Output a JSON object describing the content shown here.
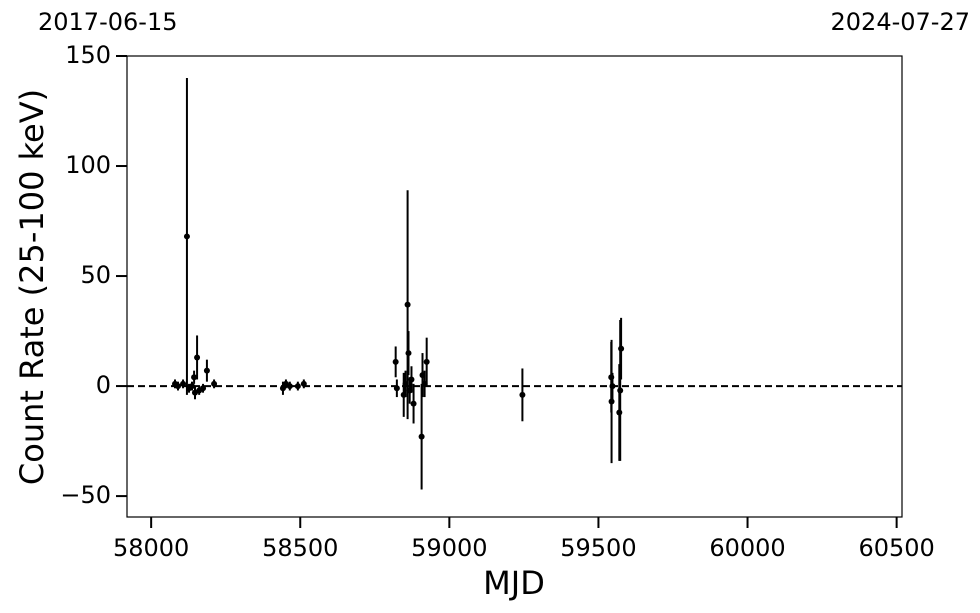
{
  "chart_data": {
    "type": "errorbar",
    "xlabel": "MJD",
    "ylabel": "Count Rate (25-100 keV)",
    "top_labels": [
      "2017-06-15",
      "2024-07-27"
    ],
    "xlim": [
      57919,
      60518
    ],
    "ylim": [
      -59.5,
      150
    ],
    "xticks": [
      58000,
      58500,
      59000,
      59500,
      60000,
      60500
    ],
    "yticks": [
      {
        "value": -50,
        "label": "−50"
      },
      0,
      50,
      100,
      150
    ],
    "hline": 0,
    "color": "#000000",
    "series": [
      {
        "name": "data",
        "color": "#000000",
        "x": [
          58080,
          58090,
          58107,
          58120,
          58127,
          58137,
          58144,
          58147,
          58154,
          58161,
          58174,
          58187,
          58211,
          58442,
          58452,
          58465,
          58492,
          58512,
          58820,
          58824,
          58847,
          58853,
          58860,
          58863,
          58867,
          58873,
          58880,
          58907,
          58910,
          58917,
          58924,
          59245,
          59543,
          59544,
          59547,
          59570,
          59573,
          59576
        ],
        "values": [
          1,
          0,
          1,
          68,
          -1,
          0,
          4,
          -3,
          13,
          -2,
          -1,
          7,
          1,
          -1,
          1,
          0,
          0,
          1,
          11,
          -1,
          -4,
          1,
          37,
          15,
          -2,
          3,
          -8,
          -23,
          5,
          1,
          11,
          -4,
          4,
          -7,
          0,
          -12,
          -2,
          17
        ],
        "errors": [
          2,
          2,
          2,
          72,
          2,
          2,
          3,
          3,
          10,
          2,
          2,
          5,
          2,
          3,
          2,
          2,
          2,
          2,
          7,
          4,
          10,
          6,
          52,
          10,
          6,
          6,
          9,
          24,
          10,
          6,
          11,
          12,
          16,
          28,
          6,
          22,
          32,
          14
        ]
      }
    ]
  }
}
